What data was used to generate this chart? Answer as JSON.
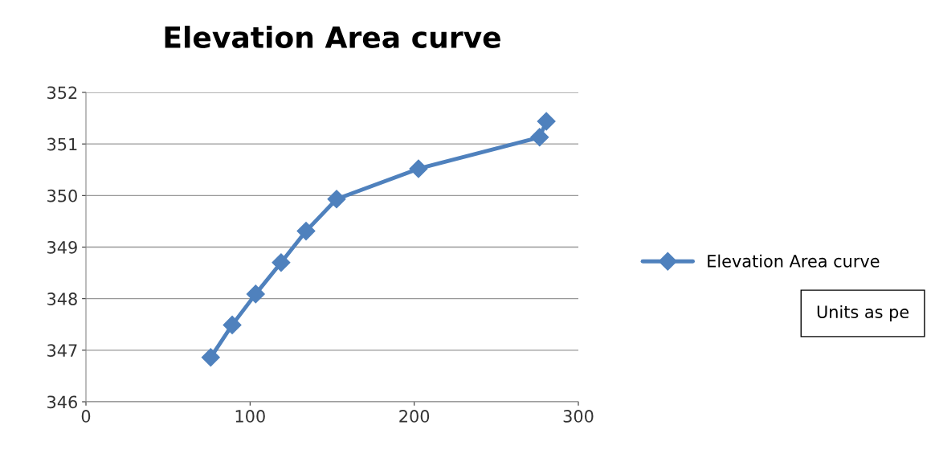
{
  "chart_data": {
    "type": "line",
    "title": "Elevation Area curve",
    "x": [
      76.0,
      89.1,
      103.4,
      118.9,
      134.1,
      152.7,
      202.6,
      276.4,
      280.5
    ],
    "series": [
      {
        "name": "Elevation Area curve",
        "color": "#4f81bd",
        "values": [
          346.86,
          347.49,
          348.09,
          348.7,
          349.31,
          349.93,
          350.52,
          351.13,
          351.44
        ]
      }
    ],
    "xlim": [
      0,
      300
    ],
    "xticks": [
      0,
      100,
      200,
      300
    ],
    "ylim": [
      346,
      352
    ],
    "yticks": [
      346,
      347,
      348,
      349,
      350,
      351,
      352
    ],
    "grid": "y",
    "legend": "right",
    "marker": "diamond",
    "line_style": "solid",
    "annotations": [
      "Units as pe"
    ]
  }
}
